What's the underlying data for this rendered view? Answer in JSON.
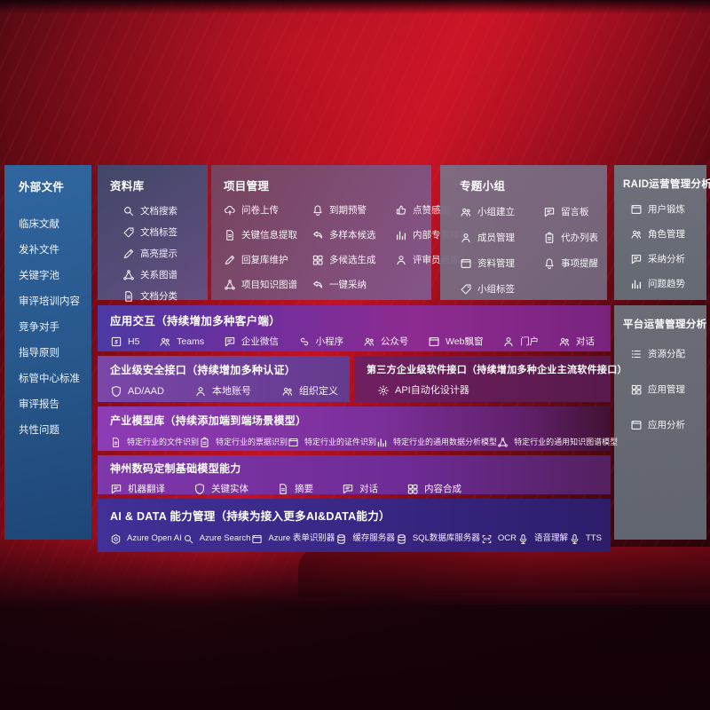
{
  "colors": {
    "background_red": "#b01020",
    "sidebar_blue": "#2a5b8e",
    "panel_gray": "#6d737b",
    "interaction_purple": "#7c2f97",
    "ai_indigo": "#3a2a87",
    "thirdparty_wine": "#6a1f5c",
    "text": "#ffffff"
  },
  "sidebar": {
    "title": "外部文件",
    "items": [
      "临床文献",
      "发补文件",
      "关键字池",
      "审评培训内容",
      "竞争对手",
      "指导原则",
      "标管中心标准",
      "审评报告",
      "共性问题"
    ]
  },
  "panels": {
    "library": {
      "title": "资料库",
      "items": [
        {
          "label": "文档搜索",
          "icon": "document-search-icon"
        },
        {
          "label": "文档标签",
          "icon": "document-tag-icon"
        },
        {
          "label": "高亮提示",
          "icon": "highlight-icon"
        },
        {
          "label": "关系图谱",
          "icon": "relation-graph-icon"
        },
        {
          "label": "文档分类",
          "icon": "document-category-icon"
        }
      ]
    },
    "project": {
      "title": "项目管理",
      "items": [
        {
          "label": "问卷上传",
          "icon": "questionnaire-upload-icon"
        },
        {
          "label": "到期预警",
          "icon": "due-alert-icon"
        },
        {
          "label": "点赞感谢",
          "icon": "like-thanks-icon"
        },
        {
          "label": "关键信息提取",
          "icon": "key-info-extract-icon"
        },
        {
          "label": "多样本候选",
          "icon": "multi-sample-candidate-icon"
        },
        {
          "label": "内部专家排名",
          "icon": "expert-ranking-icon"
        },
        {
          "label": "回复库维护",
          "icon": "reply-library-maintain-icon"
        },
        {
          "label": "多候选生成",
          "icon": "multi-candidate-generate-icon"
        },
        {
          "label": "评审员画像",
          "icon": "reviewer-profile-icon"
        },
        {
          "label": "项目知识图谱",
          "icon": "project-knowledge-graph-icon"
        },
        {
          "label": "一键采纳",
          "icon": "one-click-adopt-icon"
        }
      ]
    },
    "group": {
      "title": "专题小组",
      "items": [
        {
          "label": "小组建立",
          "icon": "group-create-icon"
        },
        {
          "label": "留言板",
          "icon": "message-board-icon"
        },
        {
          "label": "成员管理",
          "icon": "member-management-icon"
        },
        {
          "label": "代办列表",
          "icon": "todo-list-icon"
        },
        {
          "label": "资料管理",
          "icon": "material-management-icon"
        },
        {
          "label": "事项提醒",
          "icon": "reminder-icon"
        },
        {
          "label": "小组标签",
          "icon": "group-tag-icon"
        }
      ]
    },
    "raid": {
      "title": "RAID运营管理分析",
      "items": [
        {
          "label": "用户锻炼",
          "icon": "user-training-icon"
        },
        {
          "label": "角色管理",
          "icon": "role-management-icon"
        },
        {
          "label": "采纳分析",
          "icon": "adoption-analysis-icon"
        },
        {
          "label": "问题趋势",
          "icon": "issue-trend-icon"
        }
      ]
    },
    "platform": {
      "title": "平台运营管理分析",
      "items": [
        {
          "label": "资源分配",
          "icon": "resource-allocation-icon"
        },
        {
          "label": "应用管理",
          "icon": "app-management-icon"
        },
        {
          "label": "应用分析",
          "icon": "app-analysis-icon"
        }
      ]
    },
    "interaction": {
      "title": "应用交互（持续增加多种客户端）",
      "items": [
        {
          "label": "H5",
          "icon": "h5-icon"
        },
        {
          "label": "Teams",
          "icon": "teams-icon"
        },
        {
          "label": "企业微信",
          "icon": "wechat-work-icon"
        },
        {
          "label": "小程序",
          "icon": "miniprogram-icon"
        },
        {
          "label": "公众号",
          "icon": "official-account-icon"
        },
        {
          "label": "Web飘窗",
          "icon": "web-popup-icon"
        },
        {
          "label": "门户",
          "icon": "portal-icon"
        },
        {
          "label": "对话",
          "icon": "dialog-icon"
        }
      ]
    },
    "security": {
      "title": "企业级安全接口（持续增加多种认证）",
      "items": [
        {
          "label": "AD/AAD",
          "icon": "ad-aad-icon"
        },
        {
          "label": "本地账号",
          "icon": "local-account-icon"
        },
        {
          "label": "组织定义",
          "icon": "org-definition-icon"
        }
      ]
    },
    "thirdparty": {
      "title": "第三方企业级软件接口（持续增加多种企业主流软件接口）",
      "items": [
        {
          "label": "API自动化设计器",
          "icon": "api-designer-icon"
        }
      ]
    },
    "industry_models": {
      "title": "产业模型库（持续添加端到端场景模型）",
      "items": [
        {
          "label": "特定行业的文件识别",
          "icon": "industry-file-recognition-icon"
        },
        {
          "label": "特定行业的票据识别",
          "icon": "industry-receipt-recognition-icon"
        },
        {
          "label": "特定行业的证件识别",
          "icon": "industry-id-recognition-icon"
        },
        {
          "label": "特定行业的通用数据分析模型",
          "icon": "industry-data-model-icon"
        },
        {
          "label": "特定行业的通用知识图谱模型",
          "icon": "industry-kg-model-icon"
        }
      ]
    },
    "base_models": {
      "title": "神州数码定制基础模型能力",
      "items": [
        {
          "label": "机器翻译",
          "icon": "machine-translation-icon"
        },
        {
          "label": "关键实体",
          "icon": "key-entity-icon"
        },
        {
          "label": "摘要",
          "icon": "summary-icon"
        },
        {
          "label": "对话",
          "icon": "dialogue-icon"
        },
        {
          "label": "内容合成",
          "icon": "content-synthesis-icon"
        }
      ]
    },
    "ai_data": {
      "title": "AI & DATA 能力管理（持续为接入更多AI&DATA能力）",
      "items": [
        {
          "label": "Azure Open AI",
          "icon": "azure-openai-icon"
        },
        {
          "label": "Azure Search",
          "icon": "azure-search-icon"
        },
        {
          "label": "Azure 表单识别器",
          "icon": "azure-form-recognizer-icon"
        },
        {
          "label": "缓存服务器",
          "icon": "cache-server-icon"
        },
        {
          "label": "SQL数据库服务器",
          "icon": "sql-server-icon"
        },
        {
          "label": "OCR",
          "icon": "ocr-icon"
        },
        {
          "label": "语音理解",
          "icon": "speech-understanding-icon"
        },
        {
          "label": "TTS",
          "icon": "tts-icon"
        }
      ]
    }
  }
}
